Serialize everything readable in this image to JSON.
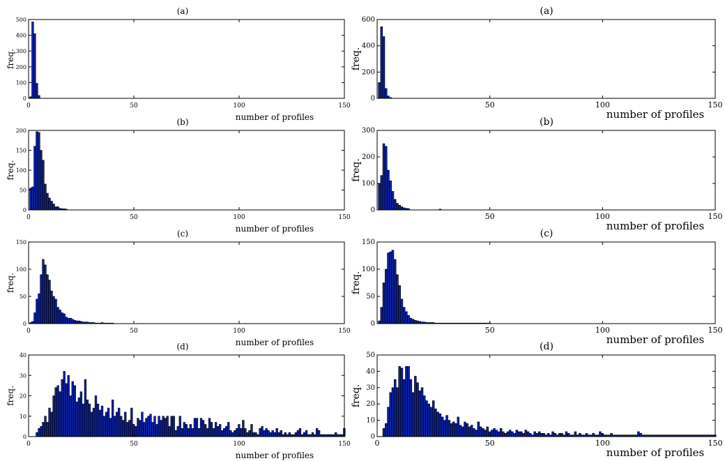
{
  "figure": {
    "bar_color": "#0b22a6",
    "bar_edge_color": "#000000",
    "axis_color": "#000000"
  },
  "chart_data": [
    {
      "type": "bar",
      "title": "(a)",
      "xlabel": "number of profiles",
      "ylabel": "freq.",
      "xlim": [
        0,
        150
      ],
      "ylim": [
        0,
        500
      ],
      "xticks": [
        0,
        50,
        100,
        150
      ],
      "yticks": [
        0,
        100,
        200,
        300,
        400,
        500
      ],
      "grid": false,
      "series": [
        {
          "x": [
            1,
            2,
            3,
            4,
            5
          ],
          "values": [
            10,
            485,
            410,
            95,
            18
          ]
        }
      ]
    },
    {
      "type": "bar",
      "title": "(a)",
      "xlabel": "number of profiles",
      "ylabel": "freq.",
      "xlim": [
        0,
        150
      ],
      "ylim": [
        0,
        600
      ],
      "xticks": [
        50,
        100,
        150
      ],
      "yticks": [
        0,
        200,
        400,
        600
      ],
      "grid": false,
      "series": [
        {
          "x": [
            1,
            2,
            3,
            4,
            5,
            6
          ],
          "values": [
            120,
            545,
            470,
            75,
            18,
            6
          ]
        }
      ]
    },
    {
      "type": "bar",
      "title": "(b)",
      "xlabel": "number of profiles",
      "ylabel": "freq.",
      "xlim": [
        0,
        150
      ],
      "ylim": [
        0,
        200
      ],
      "xticks": [
        0,
        50,
        100,
        150
      ],
      "yticks": [
        0,
        50,
        100,
        150,
        200
      ],
      "grid": false,
      "series": [
        {
          "x": [
            1,
            2,
            3,
            4,
            5,
            6,
            7,
            8,
            9,
            10,
            11,
            12,
            13,
            14,
            15,
            16,
            17,
            18
          ],
          "values": [
            55,
            58,
            160,
            197,
            195,
            150,
            125,
            65,
            42,
            30,
            22,
            15,
            8,
            8,
            4,
            3,
            3,
            2
          ]
        }
      ]
    },
    {
      "type": "bar",
      "title": "(b)",
      "xlabel": "number of profiles",
      "ylabel": "freq.",
      "xlim": [
        0,
        150
      ],
      "ylim": [
        0,
        300
      ],
      "xticks": [
        50,
        100,
        150
      ],
      "yticks": [
        0,
        100,
        200,
        300
      ],
      "grid": false,
      "series": [
        {
          "x": [
            1,
            2,
            3,
            4,
            5,
            6,
            7,
            8,
            9,
            10,
            11,
            12,
            13,
            14,
            28
          ],
          "values": [
            100,
            130,
            250,
            240,
            150,
            110,
            70,
            40,
            25,
            18,
            12,
            8,
            6,
            5,
            3
          ]
        }
      ]
    },
    {
      "type": "bar",
      "title": "(c)",
      "xlabel": "number of profiles",
      "ylabel": "freq.",
      "xlim": [
        0,
        150
      ],
      "ylim": [
        0,
        150
      ],
      "xticks": [
        0,
        50,
        100,
        150
      ],
      "yticks": [
        0,
        50,
        100,
        150
      ],
      "grid": false,
      "series": [
        {
          "x": [
            1,
            2,
            3,
            4,
            5,
            6,
            7,
            8,
            9,
            10,
            11,
            12,
            13,
            14,
            15,
            16,
            17,
            18,
            19,
            20,
            21,
            22,
            23,
            24,
            25,
            26,
            27,
            28,
            29,
            30,
            31,
            32,
            33,
            34,
            35,
            36,
            37,
            38,
            39,
            40
          ],
          "values": [
            2,
            4,
            20,
            45,
            55,
            90,
            118,
            108,
            90,
            80,
            60,
            50,
            45,
            30,
            25,
            20,
            18,
            12,
            10,
            10,
            8,
            6,
            5,
            5,
            4,
            3,
            3,
            3,
            2,
            2,
            2,
            1,
            1,
            1,
            2,
            1,
            1,
            1,
            1,
            1
          ]
        }
      ]
    },
    {
      "type": "bar",
      "title": "(c)",
      "xlabel": "number of profiles",
      "ylabel": "freq.",
      "xlim": [
        0,
        150
      ],
      "ylim": [
        0,
        150
      ],
      "xticks": [
        50,
        100,
        150
      ],
      "yticks": [
        0,
        50,
        100,
        150
      ],
      "grid": false,
      "series": [
        {
          "x": [
            1,
            2,
            3,
            4,
            5,
            6,
            7,
            8,
            9,
            10,
            11,
            12,
            13,
            14,
            15,
            16,
            17,
            18,
            19,
            20,
            21,
            22,
            23,
            24,
            25,
            26,
            27,
            28,
            29,
            30,
            31,
            32,
            33,
            34,
            35,
            36,
            37,
            38,
            39,
            40,
            41,
            42,
            43,
            44,
            45,
            46,
            47,
            48,
            49,
            50
          ],
          "values": [
            5,
            30,
            75,
            100,
            130,
            132,
            135,
            118,
            90,
            70,
            45,
            30,
            22,
            15,
            10,
            8,
            6,
            5,
            4,
            3,
            3,
            2,
            2,
            2,
            2,
            1,
            1,
            1,
            1,
            1,
            1,
            1,
            1,
            1,
            1,
            1,
            1,
            1,
            1,
            1,
            1,
            1,
            1,
            1,
            1,
            1,
            1,
            1,
            1,
            1
          ]
        }
      ]
    },
    {
      "type": "bar",
      "title": "(d)",
      "xlabel": "number of profiles",
      "ylabel": "freq.",
      "xlim": [
        0,
        150
      ],
      "ylim": [
        0,
        40
      ],
      "xticks": [
        0,
        50,
        100,
        150
      ],
      "yticks": [
        0,
        10,
        20,
        30,
        40
      ],
      "grid": false,
      "series": [
        {
          "x": [
            4,
            5,
            6,
            7,
            8,
            9,
            10,
            11,
            12,
            13,
            14,
            15,
            16,
            17,
            18,
            19,
            20,
            21,
            22,
            23,
            24,
            25,
            26,
            27,
            28,
            29,
            30,
            31,
            32,
            33,
            34,
            35,
            36,
            37,
            38,
            39,
            40,
            41,
            42,
            43,
            44,
            45,
            46,
            47,
            48,
            49,
            50,
            51,
            52,
            53,
            54,
            55,
            56,
            57,
            58,
            59,
            60,
            61,
            62,
            63,
            64,
            65,
            66,
            67,
            68,
            69,
            70,
            71,
            72,
            73,
            74,
            75,
            76,
            77,
            78,
            79,
            80,
            81,
            82,
            83,
            84,
            85,
            86,
            87,
            88,
            89,
            90,
            91,
            92,
            93,
            94,
            95,
            96,
            97,
            98,
            99,
            100,
            101,
            102,
            103,
            104,
            105,
            106,
            107,
            108,
            109,
            110,
            111,
            112,
            113,
            114,
            115,
            116,
            117,
            118,
            119,
            120,
            121,
            122,
            123,
            124,
            125,
            126,
            127,
            128,
            129,
            130,
            131,
            132,
            133,
            134,
            135,
            136,
            137,
            138,
            139,
            140,
            141,
            142,
            143,
            144,
            145,
            146,
            147,
            148,
            149,
            150
          ],
          "values": [
            2,
            4,
            5,
            7,
            10,
            7,
            14,
            12,
            20,
            24,
            25,
            22,
            28,
            32,
            26,
            30,
            20,
            27,
            25,
            17,
            19,
            22,
            16,
            28,
            18,
            16,
            12,
            14,
            20,
            16,
            13,
            15,
            10,
            12,
            14,
            9,
            18,
            10,
            12,
            14,
            10,
            8,
            12,
            7,
            8,
            14,
            6,
            5,
            9,
            8,
            12,
            7,
            9,
            10,
            11,
            7,
            10,
            6,
            10,
            8,
            10,
            9,
            10,
            5,
            10,
            10,
            3,
            5,
            10,
            4,
            7,
            6,
            4,
            6,
            4,
            9,
            9,
            4,
            9,
            8,
            6,
            4,
            9,
            7,
            4,
            7,
            5,
            6,
            3,
            4,
            5,
            7,
            3,
            2,
            3,
            4,
            6,
            4,
            8,
            4,
            2,
            3,
            6,
            2,
            2,
            1,
            4,
            5,
            3,
            4,
            3,
            2,
            3,
            2,
            4,
            2,
            3,
            1,
            2,
            1,
            2,
            1,
            1,
            2,
            3,
            4,
            1,
            2,
            3,
            1,
            1,
            2,
            1,
            4,
            3,
            1,
            1,
            1,
            1,
            1,
            1,
            1,
            2,
            1,
            1,
            1,
            4
          ]
        }
      ]
    },
    {
      "type": "bar",
      "title": "(d)",
      "xlabel": "number of profiles",
      "ylabel": "freq.",
      "xlim": [
        0,
        150
      ],
      "ylim": [
        0,
        50
      ],
      "xticks": [
        0,
        50,
        100,
        150
      ],
      "yticks": [
        0,
        10,
        20,
        30,
        40,
        50
      ],
      "grid": false,
      "series": [
        {
          "x": [
            3,
            4,
            5,
            6,
            7,
            8,
            9,
            10,
            11,
            12,
            13,
            14,
            15,
            16,
            17,
            18,
            19,
            20,
            21,
            22,
            23,
            24,
            25,
            26,
            27,
            28,
            29,
            30,
            31,
            32,
            33,
            34,
            35,
            36,
            37,
            38,
            39,
            40,
            41,
            42,
            43,
            44,
            45,
            46,
            47,
            48,
            49,
            50,
            51,
            52,
            53,
            54,
            55,
            56,
            57,
            58,
            59,
            60,
            61,
            62,
            63,
            64,
            65,
            66,
            67,
            68,
            69,
            70,
            71,
            72,
            73,
            74,
            75,
            76,
            77,
            78,
            79,
            80,
            81,
            82,
            83,
            84,
            85,
            86,
            87,
            88,
            89,
            90,
            91,
            92,
            93,
            94,
            95,
            96,
            97,
            98,
            99,
            100,
            101,
            102,
            103,
            104,
            105,
            106,
            107,
            108,
            109,
            110,
            111,
            112,
            113,
            114,
            115,
            116,
            117,
            118,
            119,
            120,
            121,
            122,
            123,
            124,
            125,
            126,
            127,
            128,
            129,
            130,
            131,
            132,
            133,
            134,
            135,
            136,
            137,
            138,
            139,
            140,
            141,
            142,
            143,
            144,
            145,
            146,
            147,
            148,
            149,
            150
          ],
          "values": [
            5,
            8,
            18,
            27,
            30,
            35,
            30,
            43,
            42,
            35,
            43,
            43,
            35,
            27,
            37,
            33,
            28,
            30,
            25,
            22,
            20,
            18,
            22,
            17,
            15,
            14,
            12,
            10,
            13,
            10,
            8,
            9,
            8,
            12,
            7,
            6,
            9,
            8,
            6,
            7,
            5,
            4,
            9,
            6,
            5,
            4,
            6,
            3,
            4,
            5,
            4,
            3,
            5,
            3,
            2,
            3,
            4,
            3,
            2,
            4,
            3,
            3,
            2,
            4,
            3,
            2,
            1,
            3,
            2,
            3,
            2,
            2,
            1,
            2,
            1,
            3,
            2,
            1,
            2,
            2,
            1,
            3,
            2,
            1,
            1,
            3,
            1,
            2,
            1,
            1,
            2,
            1,
            1,
            2,
            1,
            1,
            3,
            2,
            1,
            1,
            1,
            2,
            1,
            1,
            1,
            1,
            1,
            1,
            1,
            1,
            1,
            1,
            1,
            3,
            2,
            1,
            1,
            1,
            1,
            1,
            1,
            1,
            1,
            1,
            1,
            1,
            1,
            1,
            1,
            1,
            1,
            1,
            1,
            1,
            1,
            1,
            1,
            1,
            1,
            1,
            1,
            1,
            1,
            1,
            1,
            1,
            1,
            1
          ]
        }
      ]
    }
  ]
}
